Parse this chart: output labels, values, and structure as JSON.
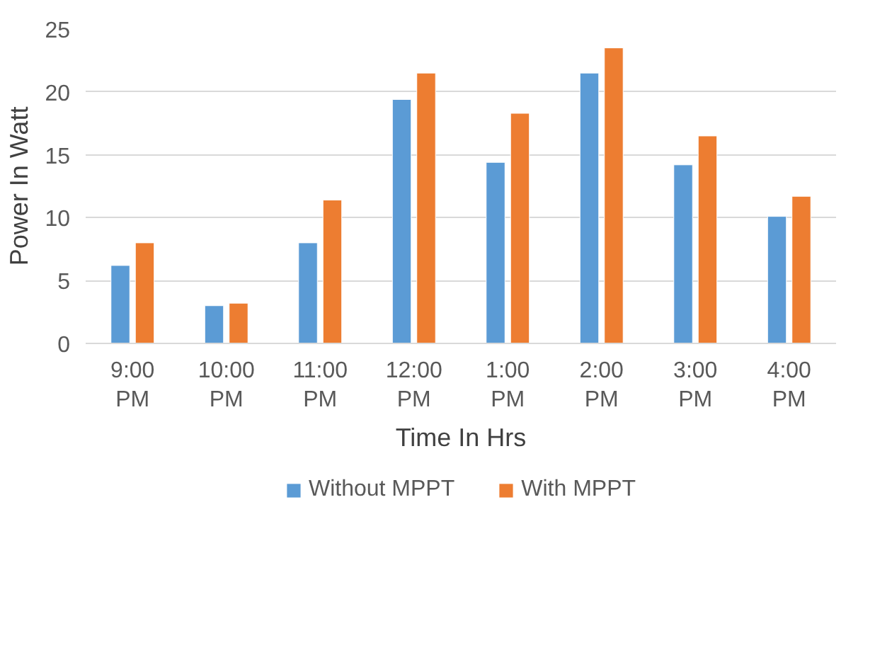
{
  "chart_data": {
    "type": "bar",
    "xlabel": "Time In Hrs",
    "ylabel": "Power In Watt",
    "categories": [
      "9:00 PM",
      "10:00 PM",
      "11:00 PM",
      "12:00 PM",
      "1:00 PM",
      "2:00 PM",
      "3:00 PM",
      "4:00 PM"
    ],
    "series": [
      {
        "name": "Without MPPT",
        "color": "#5b9bd5",
        "values": [
          6.2,
          3.0,
          8.0,
          19.4,
          14.4,
          21.5,
          14.2,
          10.1
        ]
      },
      {
        "name": "With MPPT",
        "color": "#ed7d31",
        "values": [
          8.0,
          3.2,
          11.4,
          21.5,
          18.3,
          23.5,
          16.5,
          11.7
        ]
      }
    ],
    "ylim": [
      0,
      25
    ],
    "yticks": [
      0,
      5,
      10,
      15,
      20,
      25
    ],
    "grid": "y",
    "legend": "bottom"
  }
}
